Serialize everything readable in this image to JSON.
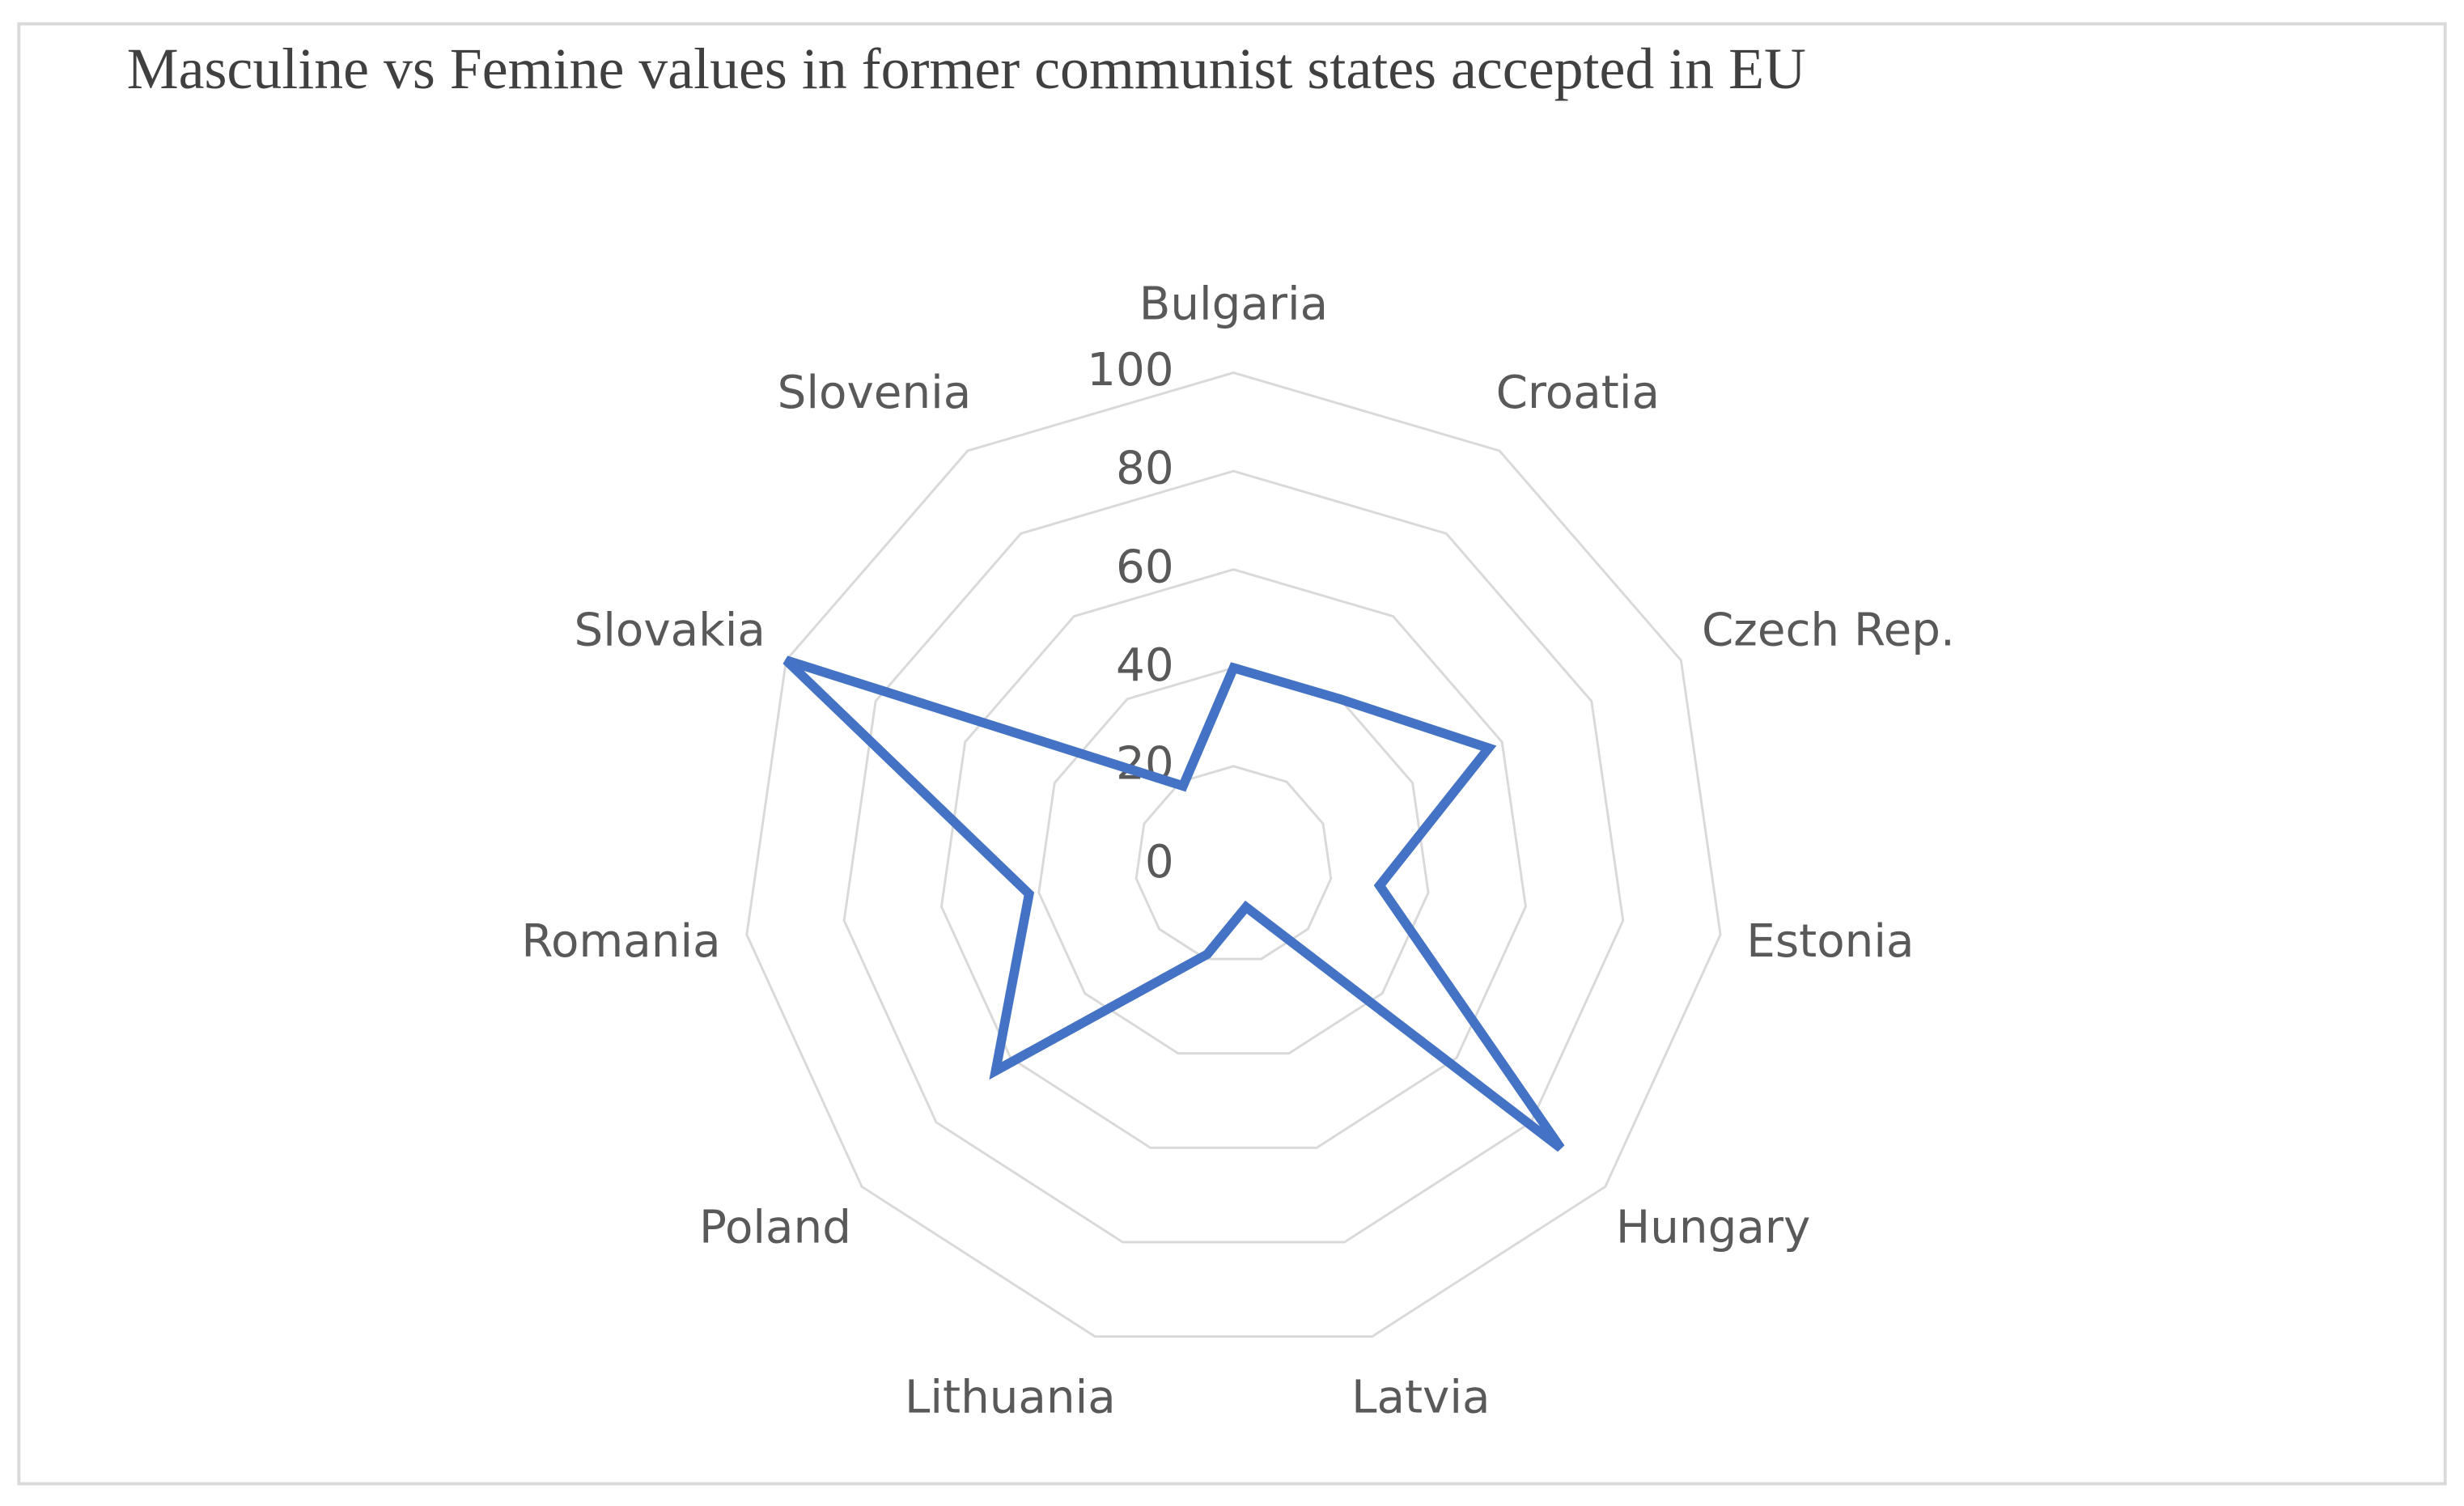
{
  "chart_data": {
    "type": "radar",
    "title": "Masculine vs Femine values in former communist states accepted in EU",
    "categories": [
      "Bulgaria",
      "Croatia",
      "Czech Rep.",
      "Estonia",
      "Hungary",
      "Latvia",
      "Lithuania",
      "Poland",
      "Romania",
      "Slovakia",
      "Slovenia"
    ],
    "values": [
      40,
      40,
      57,
      30,
      88,
      9,
      19,
      64,
      42,
      100,
      19
    ],
    "color": "#4472c4",
    "ylim": [
      0,
      100
    ],
    "yticks": [
      0,
      20,
      40,
      60,
      80,
      100
    ],
    "grid": true
  }
}
